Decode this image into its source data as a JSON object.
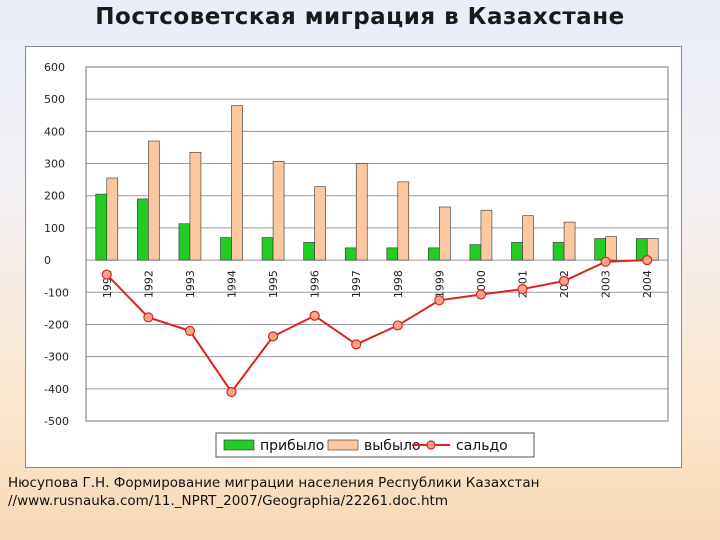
{
  "page": {
    "title": "Постсоветская миграция в Казахстане",
    "caption_line1": "Нюсупова Г.Н. Формирование миграции населения Республики Казахстан",
    "caption_line2": "//www.rusnauka.com/11._NPRT_2007/Geographia/22261.doc.htm"
  },
  "chart_data": {
    "type": "bar",
    "categories": [
      "1991",
      "1992",
      "1993",
      "1994",
      "1995",
      "1996",
      "1997",
      "1998",
      "1999",
      "2000",
      "2001",
      "2002",
      "2003",
      "2004"
    ],
    "series": [
      {
        "name": "прибыло",
        "type": "bar",
        "color": "#22cc22",
        "values": [
          205,
          190,
          113,
          70,
          70,
          55,
          38,
          38,
          38,
          48,
          55,
          55,
          67,
          67
        ]
      },
      {
        "name": "выбыло",
        "type": "bar",
        "color": "#f9c8a0",
        "values": [
          255,
          370,
          335,
          480,
          307,
          228,
          300,
          243,
          165,
          155,
          138,
          118,
          73,
          67
        ]
      },
      {
        "name": "сальдо",
        "type": "line",
        "color": "#dd2222",
        "values": [
          -45,
          -178,
          -220,
          -410,
          -237,
          -173,
          -262,
          -203,
          -125,
          -107,
          -90,
          -65,
          -5,
          0
        ]
      }
    ],
    "ylim": [
      -500,
      600
    ],
    "yticks": [
      600,
      500,
      400,
      300,
      200,
      100,
      0,
      -100,
      -200,
      -300,
      -400,
      -500
    ],
    "legend_position": "bottom",
    "grid": true
  }
}
